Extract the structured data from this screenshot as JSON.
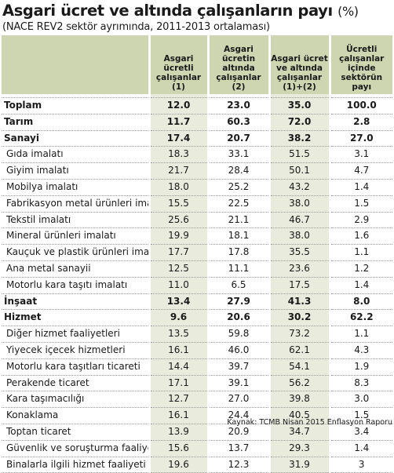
{
  "title": "Asgari ücret ve altında çalışanların payı",
  "title_unit": "(%)",
  "subtitle": "(NACE REV2 sektör ayrımında, 2011-2013 ortalaması)",
  "headers": {
    "col1": "Asgari ücretli çalışanlar (1)",
    "col2": "Asgari ücretin altında çalışanlar (2)",
    "col3": "Asgari ücret ve altında çalışanlar (1)+(2)",
    "col4": "Ücretli çalışanlar içinde sektörün payı"
  },
  "rows": [
    {
      "name": "Toplam",
      "v1": "12.0",
      "v2": "23.0",
      "v3": "35.0",
      "v4": "100.0",
      "bold": true
    },
    {
      "name": "Tarım",
      "v1": "11.7",
      "v2": "60.3",
      "v3": "72.0",
      "v4": "2.8",
      "bold": true
    },
    {
      "name": "Sanayi",
      "v1": "17.4",
      "v2": "20.7",
      "v3": "38.2",
      "v4": "27.0",
      "bold": true
    },
    {
      "name": "Gıda imalatı",
      "v1": "18.3",
      "v2": "33.1",
      "v3": "51.5",
      "v4": "3.1",
      "bold": false
    },
    {
      "name": "Giyim imalatı",
      "v1": "21.7",
      "v2": "28.4",
      "v3": "50.1",
      "v4": "4.7",
      "bold": false
    },
    {
      "name": "Mobilya imalatı",
      "v1": "18.0",
      "v2": "25.2",
      "v3": "43.2",
      "v4": "1.4",
      "bold": false
    },
    {
      "name": "Fabrikasyon metal ürünleri imalatı",
      "v1": "15.5",
      "v2": "22.5",
      "v3": "38.0",
      "v4": "1.5",
      "bold": false
    },
    {
      "name": "Tekstil imalatı",
      "v1": "25.6",
      "v2": "21.1",
      "v3": "46.7",
      "v4": "2.9",
      "bold": false
    },
    {
      "name": "Mineral ürünleri imalatı",
      "v1": "19.9",
      "v2": "18.1",
      "v3": "38.0",
      "v4": "1.6",
      "bold": false
    },
    {
      "name": "Kauçuk ve plastik ürünleri imalatı",
      "v1": "17.7",
      "v2": "17.8",
      "v3": "35.5",
      "v4": "1.1",
      "bold": false
    },
    {
      "name": "Ana metal sanayii",
      "v1": "12.5",
      "v2": "11.1",
      "v3": "23.6",
      "v4": "1.2",
      "bold": false
    },
    {
      "name": "Motorlu kara taşıtı imalatı",
      "v1": "11.0",
      "v2": "6.5",
      "v3": "17.5",
      "v4": "1.4",
      "bold": false
    },
    {
      "name": "İnşaat",
      "v1": "13.4",
      "v2": "27.9",
      "v3": "41.3",
      "v4": "8.0",
      "bold": true
    },
    {
      "name": "Hizmet",
      "v1": "9.6",
      "v2": "20.6",
      "v3": "30.2",
      "v4": "62.2",
      "bold": true
    },
    {
      "name": "Diğer hizmet faaliyetleri",
      "v1": "13.5",
      "v2": "59.8",
      "v3": "73.2",
      "v4": "1.1",
      "bold": false
    },
    {
      "name": "Yiyecek içecek hizmetleri",
      "v1": "16.1",
      "v2": "46.0",
      "v3": "62.1",
      "v4": "4.3",
      "bold": false
    },
    {
      "name": "Motorlu kara taşıtları ticareti",
      "v1": "14.4",
      "v2": "39.7",
      "v3": "54.1",
      "v4": "1.9",
      "bold": false
    },
    {
      "name": "Perakende ticaret",
      "v1": "17.1",
      "v2": "39.1",
      "v3": "56.2",
      "v4": "8.3",
      "bold": false
    },
    {
      "name": "Kara taşımacılığı",
      "v1": "12.7",
      "v2": "27.0",
      "v3": "39.8",
      "v4": "3.0",
      "bold": false
    },
    {
      "name": "Konaklama",
      "v1": "16.1",
      "v2": "24.4",
      "v3": "40.5",
      "v4": "1.5",
      "bold": false
    },
    {
      "name": "Toptan ticaret",
      "v1": "13.9",
      "v2": "20.9",
      "v3": "34.7",
      "v4": "3.4",
      "bold": false
    },
    {
      "name": "Güvenlik ve soruşturma faaliyeti",
      "v1": "15.6",
      "v2": "13.7",
      "v3": "29.3",
      "v4": "1.4",
      "bold": false
    },
    {
      "name": "Binalarla ilgili hizmet faaliyeti",
      "v1": "19.6",
      "v2": "12.3",
      "v3": "31.9",
      "v4": "3",
      "bold": false
    }
  ],
  "source": "Kaynak: TCMB Nisan 2015 Enflasyon Raporu"
}
